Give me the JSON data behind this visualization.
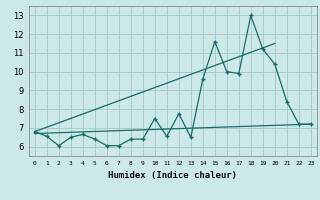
{
  "title": "",
  "xlabel": "Humidex (Indice chaleur)",
  "bg_color": "#cce8e8",
  "grid_color": "#aacccc",
  "line_color": "#1a6b6b",
  "xlim": [
    -0.5,
    23.5
  ],
  "ylim": [
    5.5,
    13.5
  ],
  "xticks": [
    0,
    1,
    2,
    3,
    4,
    5,
    6,
    7,
    8,
    9,
    10,
    11,
    12,
    13,
    14,
    15,
    16,
    17,
    18,
    19,
    20,
    21,
    22,
    23
  ],
  "yticks": [
    6,
    7,
    8,
    9,
    10,
    11,
    12,
    13
  ],
  "main_x": [
    0,
    1,
    2,
    3,
    4,
    5,
    6,
    7,
    8,
    9,
    10,
    11,
    12,
    13,
    14,
    15,
    16,
    17,
    18,
    19,
    20,
    21,
    22,
    23
  ],
  "main_y": [
    6.8,
    6.55,
    6.05,
    6.5,
    6.65,
    6.4,
    6.05,
    6.05,
    6.4,
    6.4,
    7.5,
    6.55,
    7.75,
    6.5,
    9.6,
    11.6,
    10.0,
    9.9,
    13.0,
    11.2,
    10.4,
    8.4,
    7.2,
    7.2
  ],
  "trend1_x": [
    0,
    20
  ],
  "trend1_y": [
    6.8,
    11.5
  ],
  "trend2_x": [
    0,
    23
  ],
  "trend2_y": [
    6.7,
    7.2
  ]
}
